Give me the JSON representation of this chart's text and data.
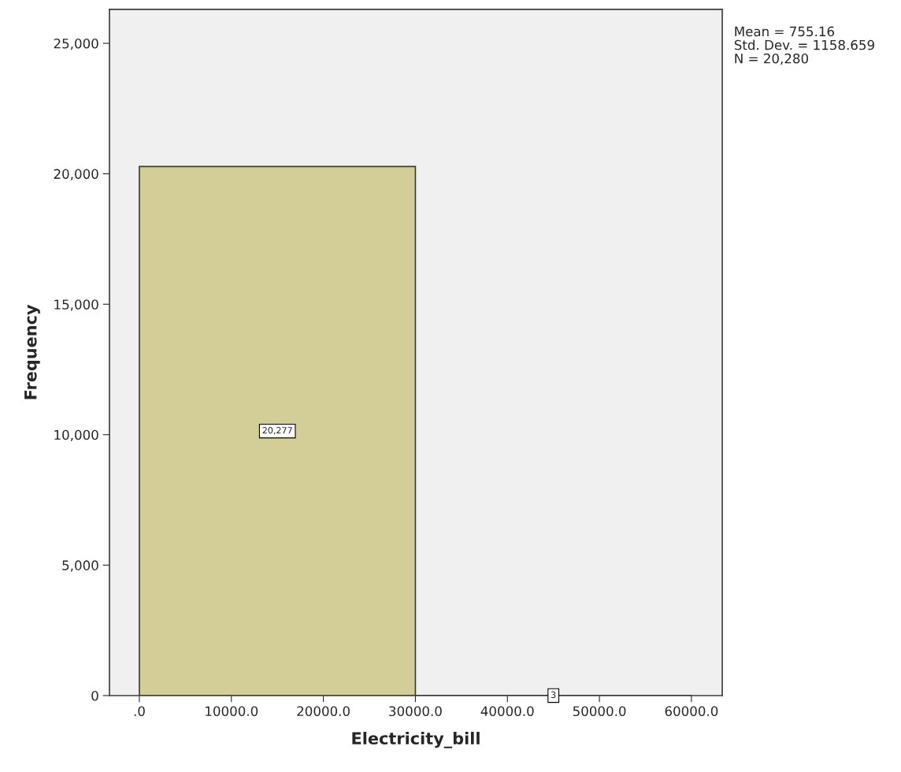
{
  "chart_data": {
    "type": "histogram",
    "xlabel": "Electricity_bill",
    "ylabel": "Frequency",
    "bins": [
      0,
      30000,
      60000
    ],
    "values": [
      20277,
      3
    ],
    "value_labels": [
      "20,277",
      "3"
    ],
    "color": "#d3ce97",
    "xlim": [
      -3250,
      63350
    ],
    "xticks": [
      {
        "value": 0,
        "label": ".0"
      },
      {
        "value": 10000,
        "label": "10000.0"
      },
      {
        "value": 20000,
        "label": "20000.0"
      },
      {
        "value": 30000,
        "label": "30000.0"
      },
      {
        "value": 40000,
        "label": "40000.0"
      },
      {
        "value": 50000,
        "label": "50000.0"
      },
      {
        "value": 60000,
        "label": "60000.0"
      }
    ],
    "ylim": [
      0,
      26300
    ],
    "yticks": [
      0,
      {
        "value": 5000,
        "label": "5,000"
      },
      {
        "value": 10000,
        "label": "10,000"
      },
      {
        "value": 15000,
        "label": "15,000"
      },
      {
        "value": 20000,
        "label": "20,000"
      },
      {
        "value": 25000,
        "label": "25,000"
      }
    ],
    "annotations": [
      "Mean = 755.16",
      "Std. Dev. = 1158.659",
      "N = 20,280"
    ],
    "grid": false,
    "legend": false
  }
}
